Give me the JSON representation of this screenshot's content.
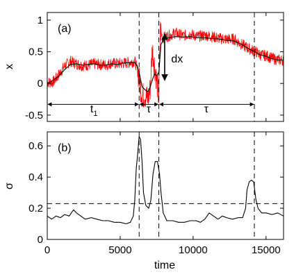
{
  "chart_data": [
    {
      "type": "line",
      "panel_label": "(a)",
      "ylabel": "x",
      "xlim": [
        0,
        16200
      ],
      "ylim": [
        -0.6,
        1.12
      ],
      "yticks": [
        -0.5,
        0,
        0.5,
        1
      ],
      "ytick_labels": [
        "-0.5",
        "0",
        "0.5",
        "1"
      ],
      "xticks": [
        0,
        5000,
        10000,
        15000
      ],
      "series": [
        {
          "color": "#ff0000",
          "style": "noisy",
          "values": [
            [
              0,
              0.02
            ],
            [
              400,
              0.02
            ],
            [
              800,
              0.14
            ],
            [
              1200,
              0.28
            ],
            [
              1600,
              0.35
            ],
            [
              2000,
              0.31
            ],
            [
              2400,
              0.28
            ],
            [
              2800,
              0.29
            ],
            [
              3200,
              0.31
            ],
            [
              3600,
              0.3
            ],
            [
              4000,
              0.29
            ],
            [
              4400,
              0.32
            ],
            [
              4800,
              0.31
            ],
            [
              5200,
              0.32
            ],
            [
              5600,
              0.33
            ],
            [
              6000,
              0.35
            ],
            [
              6200,
              0.2
            ],
            [
              6350,
              0.0
            ],
            [
              6500,
              -0.2
            ],
            [
              6700,
              -0.18
            ],
            [
              6900,
              -0.25
            ],
            [
              7050,
              -0.1
            ],
            [
              7200,
              0.55
            ],
            [
              7350,
              0.3
            ],
            [
              7500,
              0.05
            ],
            [
              7650,
              -0.25
            ],
            [
              7750,
              0.85
            ],
            [
              7900,
              0.72
            ],
            [
              8300,
              0.75
            ],
            [
              8800,
              0.8
            ],
            [
              9300,
              0.75
            ],
            [
              9800,
              0.78
            ],
            [
              10300,
              0.74
            ],
            [
              10800,
              0.76
            ],
            [
              11300,
              0.74
            ],
            [
              11800,
              0.71
            ],
            [
              12300,
              0.7
            ],
            [
              12800,
              0.7
            ],
            [
              13300,
              0.62
            ],
            [
              13800,
              0.55
            ],
            [
              14300,
              0.5
            ],
            [
              14600,
              0.45
            ],
            [
              15000,
              0.44
            ],
            [
              15400,
              0.4
            ],
            [
              15800,
              0.37
            ],
            [
              16200,
              0.37
            ]
          ]
        },
        {
          "color": "#000000",
          "style": "smooth",
          "values": [
            [
              0,
              0.0
            ],
            [
              400,
              0.05
            ],
            [
              800,
              0.12
            ],
            [
              1200,
              0.22
            ],
            [
              1600,
              0.3
            ],
            [
              2000,
              0.31
            ],
            [
              2400,
              0.29
            ],
            [
              2800,
              0.3
            ],
            [
              3200,
              0.31
            ],
            [
              3600,
              0.29
            ],
            [
              4000,
              0.29
            ],
            [
              4400,
              0.31
            ],
            [
              4800,
              0.3
            ],
            [
              5200,
              0.32
            ],
            [
              5600,
              0.33
            ],
            [
              6000,
              0.33
            ],
            [
              6200,
              0.26
            ],
            [
              6350,
              0.12
            ],
            [
              6500,
              -0.05
            ],
            [
              6700,
              -0.1
            ],
            [
              6900,
              -0.13
            ],
            [
              7050,
              -0.06
            ],
            [
              7200,
              0.05
            ],
            [
              7350,
              0.15
            ],
            [
              7500,
              0.12
            ],
            [
              7650,
              0.18
            ],
            [
              7800,
              0.62
            ],
            [
              8000,
              0.7
            ],
            [
              8300,
              0.72
            ],
            [
              8800,
              0.74
            ],
            [
              9300,
              0.73
            ],
            [
              9800,
              0.74
            ],
            [
              10300,
              0.72
            ],
            [
              10800,
              0.72
            ],
            [
              11300,
              0.71
            ],
            [
              11800,
              0.7
            ],
            [
              12300,
              0.68
            ],
            [
              12800,
              0.67
            ],
            [
              13300,
              0.62
            ],
            [
              13800,
              0.55
            ],
            [
              14300,
              0.49
            ],
            [
              14600,
              0.45
            ],
            [
              15000,
              0.43
            ],
            [
              15400,
              0.39
            ],
            [
              15800,
              0.37
            ],
            [
              16200,
              0.37
            ]
          ]
        }
      ],
      "vlines": [
        6300,
        7650,
        14200
      ],
      "arrows": [
        {
          "x1": 0,
          "x2": 6300,
          "y": -0.33
        },
        {
          "x1": 6300,
          "x2": 7650,
          "y": -0.33
        },
        {
          "x1": 7650,
          "x2": 14200,
          "y": -0.33
        }
      ],
      "vertical_arrow": {
        "x": 8050,
        "y1": 0.78,
        "y2": 0.05
      },
      "annotations": [
        {
          "text": "t",
          "sub": "1",
          "x": 3200,
          "y": -0.46
        },
        {
          "text": "τ",
          "x": 6950,
          "y": -0.46
        },
        {
          "text": "τ",
          "x": 10900,
          "y": -0.46
        },
        {
          "text": "dx",
          "x": 8900,
          "y": 0.33
        }
      ]
    },
    {
      "type": "line",
      "panel_label": "(b)",
      "ylabel": "σ",
      "xlabel": "time",
      "xlim": [
        0,
        16200
      ],
      "ylim": [
        0,
        0.69
      ],
      "yticks": [
        0,
        0.2,
        0.4,
        0.6
      ],
      "ytick_labels": [
        "0",
        "0.2",
        "0.4",
        "0.6"
      ],
      "xticks": [
        0,
        5000,
        10000,
        15000
      ],
      "xtick_labels": [
        "0",
        "5000",
        "10000",
        "15000"
      ],
      "series": [
        {
          "color": "#000000",
          "style": "line",
          "values": [
            [
              0,
              0.15
            ],
            [
              300,
              0.13
            ],
            [
              600,
              0.15
            ],
            [
              900,
              0.14
            ],
            [
              1200,
              0.16
            ],
            [
              1500,
              0.15
            ],
            [
              1800,
              0.19
            ],
            [
              2000,
              0.17
            ],
            [
              2300,
              0.15
            ],
            [
              2600,
              0.13
            ],
            [
              3000,
              0.14
            ],
            [
              3400,
              0.13
            ],
            [
              3800,
              0.12
            ],
            [
              4200,
              0.12
            ],
            [
              4600,
              0.11
            ],
            [
              5000,
              0.11
            ],
            [
              5400,
              0.1
            ],
            [
              5700,
              0.11
            ],
            [
              5900,
              0.15
            ],
            [
              6000,
              0.25
            ],
            [
              6100,
              0.45
            ],
            [
              6200,
              0.55
            ],
            [
              6300,
              0.66
            ],
            [
              6400,
              0.64
            ],
            [
              6500,
              0.5
            ],
            [
              6600,
              0.3
            ],
            [
              6750,
              0.22
            ],
            [
              6950,
              0.2
            ],
            [
              7100,
              0.25
            ],
            [
              7250,
              0.42
            ],
            [
              7400,
              0.5
            ],
            [
              7550,
              0.5
            ],
            [
              7700,
              0.42
            ],
            [
              7800,
              0.3
            ],
            [
              7950,
              0.17
            ],
            [
              8200,
              0.12
            ],
            [
              8600,
              0.12
            ],
            [
              9000,
              0.11
            ],
            [
              9400,
              0.11
            ],
            [
              9800,
              0.12
            ],
            [
              10200,
              0.12
            ],
            [
              10500,
              0.11
            ],
            [
              10800,
              0.13
            ],
            [
              11100,
              0.17
            ],
            [
              11400,
              0.15
            ],
            [
              11700,
              0.13
            ],
            [
              12000,
              0.15
            ],
            [
              12300,
              0.14
            ],
            [
              12700,
              0.13
            ],
            [
              13100,
              0.14
            ],
            [
              13400,
              0.14
            ],
            [
              13600,
              0.2
            ],
            [
              13700,
              0.32
            ],
            [
              13850,
              0.37
            ],
            [
              14000,
              0.38
            ],
            [
              14150,
              0.37
            ],
            [
              14300,
              0.26
            ],
            [
              14450,
              0.2
            ],
            [
              14700,
              0.17
            ],
            [
              15000,
              0.17
            ],
            [
              15400,
              0.16
            ],
            [
              15800,
              0.17
            ],
            [
              16200,
              0.15
            ]
          ]
        }
      ],
      "hlines": [
        0.23
      ],
      "vlines": [
        6300,
        7650,
        14200
      ]
    }
  ]
}
